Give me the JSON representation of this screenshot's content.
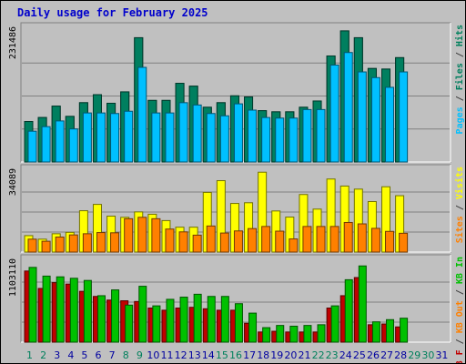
{
  "title": "Daily usage for February 2025",
  "colors": {
    "pages": "#00c0ff",
    "files": "#007f5f",
    "hits": "#00805c",
    "visits": "#ffff00",
    "sites": "#ff8000",
    "kb_in": "#00c000",
    "kb_out": "#c00000",
    "weekend_day": "#00805c",
    "day": "#0000a0"
  },
  "chart_data": [
    {
      "type": "bar",
      "panel": "hits-files-pages",
      "ymax_label": "231486",
      "right_label_parts": [
        "Pages",
        " / ",
        "Files",
        " / ",
        "Hits"
      ],
      "ylim": [
        0,
        231486
      ],
      "categories": [
        "1",
        "2",
        "3",
        "4",
        "5",
        "6",
        "7",
        "8",
        "9",
        "10",
        "11",
        "12",
        "13",
        "14",
        "15",
        "16",
        "17",
        "18",
        "19",
        "20",
        "21",
        "22",
        "23",
        "24",
        "25",
        "26",
        "27",
        "28"
      ],
      "series": [
        {
          "name": "Hits",
          "values": [
            71000,
            78000,
            98000,
            80000,
            104000,
            118000,
            103000,
            123000,
            218000,
            108000,
            108000,
            138000,
            133000,
            96000,
            104000,
            116000,
            114000,
            90000,
            88000,
            88000,
            96000,
            107000,
            186000,
            230000,
            218000,
            164000,
            163000,
            183000
          ]
        },
        {
          "name": "Files",
          "values": [
            71000,
            78000,
            98000,
            80000,
            104000,
            118000,
            103000,
            123000,
            218000,
            108000,
            108000,
            138000,
            133000,
            96000,
            104000,
            116000,
            114000,
            90000,
            88000,
            88000,
            96000,
            107000,
            186000,
            230000,
            218000,
            164000,
            163000,
            183000
          ]
        },
        {
          "name": "Pages",
          "values": [
            54000,
            62000,
            72000,
            58000,
            86000,
            86000,
            85000,
            89000,
            166000,
            86000,
            86000,
            104000,
            100000,
            85000,
            81000,
            102000,
            91000,
            78000,
            77000,
            77000,
            92000,
            92000,
            170000,
            192000,
            158000,
            148000,
            131000,
            158000
          ]
        }
      ]
    },
    {
      "type": "bar",
      "panel": "visits-sites",
      "ymax_label": "34089",
      "right_label_parts": [
        "Sites",
        " / ",
        "Visits"
      ],
      "ylim": [
        0,
        34089
      ],
      "categories": [
        "1",
        "2",
        "3",
        "4",
        "5",
        "6",
        "7",
        "8",
        "9",
        "10",
        "11",
        "12",
        "13",
        "14",
        "15",
        "16",
        "17",
        "18",
        "19",
        "20",
        "21",
        "22",
        "23",
        "24",
        "25",
        "26",
        "27",
        "28"
      ],
      "series": [
        {
          "name": "Visits",
          "values": [
            7000,
            5500,
            7800,
            8400,
            17600,
            20300,
            15300,
            14800,
            17100,
            16100,
            13400,
            10600,
            10600,
            25400,
            30400,
            20700,
            21000,
            34000,
            17500,
            14900,
            24500,
            18300,
            31100,
            28100,
            26800,
            21500,
            27800,
            24000
          ]
        },
        {
          "name": "Sites",
          "values": [
            5500,
            4600,
            6400,
            7300,
            7800,
            8300,
            8200,
            14200,
            14800,
            14200,
            9800,
            8600,
            7200,
            11100,
            8100,
            9000,
            10000,
            10900,
            8900,
            5600,
            10900,
            10900,
            10900,
            12600,
            12000,
            10100,
            8800,
            8000
          ]
        }
      ]
    },
    {
      "type": "bar",
      "panel": "kb-in-out",
      "ymax_label": "1103110",
      "right_label_parts": [
        "KB F",
        " / ",
        "KB Out",
        " / ",
        "KB In"
      ],
      "ylim": [
        0,
        1103110
      ],
      "categories": [
        "1",
        "2",
        "3",
        "4",
        "5",
        "6",
        "7",
        "8",
        "9",
        "10",
        "11",
        "12",
        "13",
        "14",
        "15",
        "16",
        "17",
        "18",
        "19",
        "20",
        "21",
        "22",
        "23",
        "24",
        "25",
        "26",
        "27",
        "28"
      ],
      "series": [
        {
          "name": "KB Out",
          "values": [
            980000,
            740000,
            820000,
            800000,
            700000,
            630000,
            580000,
            570000,
            560000,
            470000,
            440000,
            470000,
            480000,
            460000,
            440000,
            440000,
            260000,
            140000,
            150000,
            140000,
            140000,
            140000,
            470000,
            640000,
            890000,
            240000,
            250000,
            210000
          ]
        },
        {
          "name": "KB In",
          "values": [
            1030000,
            910000,
            900000,
            880000,
            850000,
            640000,
            720000,
            510000,
            770000,
            500000,
            590000,
            620000,
            660000,
            630000,
            630000,
            530000,
            400000,
            200000,
            230000,
            220000,
            230000,
            240000,
            500000,
            860000,
            1050000,
            280000,
            310000,
            330000
          ]
        }
      ]
    }
  ],
  "day_labels": [
    "1",
    "2",
    "3",
    "4",
    "5",
    "6",
    "7",
    "8",
    "9",
    "10",
    "11",
    "12",
    "13",
    "14",
    "15",
    "16",
    "17",
    "18",
    "19",
    "20",
    "21",
    "22",
    "23",
    "24",
    "25",
    "26",
    "27",
    "28",
    "29",
    "30",
    "31"
  ],
  "weekend_days": [
    "1",
    "2",
    "8",
    "9",
    "15",
    "16",
    "22",
    "23",
    "29",
    "30"
  ]
}
